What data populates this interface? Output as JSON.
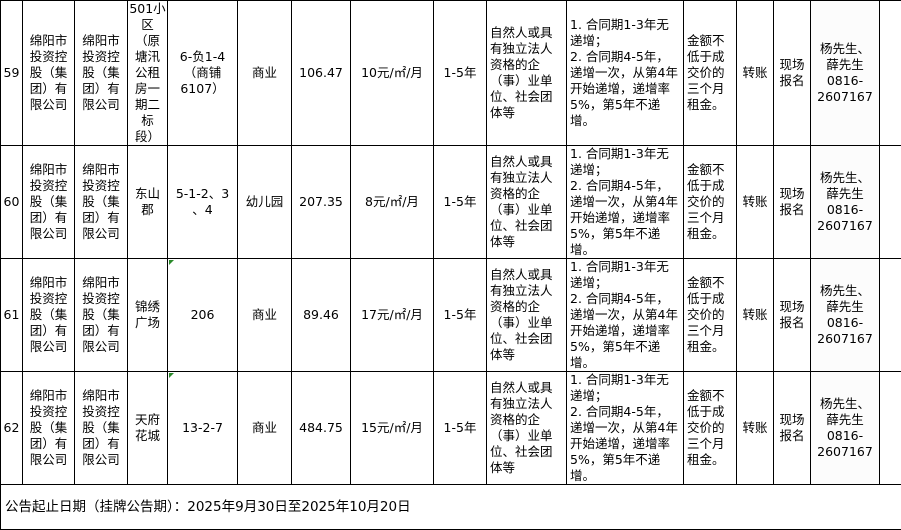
{
  "rows": [
    {
      "no": "59",
      "owner": "绵阳市\n投资控\n股（集\n团）有\n限公司",
      "manager": "绵阳市\n投资控\n股（集\n团）有\n限公司",
      "location": "501小\n区\n（原\n塘汛\n公租\n房一\n期二\n标\n段）",
      "unit": "6-负1-4\n（商铺\n6107）",
      "usage": "商业",
      "area": "106.47",
      "price": "10元/㎡/月",
      "term": "1-5年",
      "qualification": "自然人或具\n有独立法人\n资格的企\n（事）业单\n位、社会团\n体等",
      "increment": "1. 合同期1-3年无\n递增；\n2. 合同期4-5年，\n递增一次，从第4年\n开始递增，递增率\n5%，第5年不递增。",
      "deposit": "金额不\n低于成\n交价的\n三个月\n租金。",
      "payment": "转账",
      "registration": "现场\n报名",
      "contact": "杨先生、\n薛先生\n0816-\n2607167"
    },
    {
      "no": "60",
      "owner": "绵阳市\n投资控\n股（集\n团）有\n限公司",
      "manager": "绵阳市\n投资控\n股（集\n团）有\n限公司",
      "location": "东山\n郡",
      "unit": "5-1-2、3\n、4",
      "usage": "幼儿园",
      "area": "207.35",
      "price": "8元/㎡/月",
      "term": "1-5年",
      "qualification": "自然人或具\n有独立法人\n资格的企\n（事）业单\n位、社会团\n体等",
      "increment": "1. 合同期1-3年无\n递增；\n2. 合同期4-5年，\n递增一次，从第4年\n开始递增，递增率\n5%，第5年不递增。",
      "deposit": "金额不\n低于成\n交价的\n三个月\n租金。",
      "payment": "转账",
      "registration": "现场\n报名",
      "contact": "杨先生、\n薛先生\n0816-\n2607167"
    },
    {
      "no": "61",
      "owner": "绵阳市\n投资控\n股（集\n团）有\n限公司",
      "manager": "绵阳市\n投资控\n股（集\n团）有\n限公司",
      "location": "锦绣\n广场",
      "unit": "206",
      "usage": "商业",
      "area": "89.46",
      "price": "17元/㎡/月",
      "term": "1-5年",
      "qualification": "自然人或具\n有独立法人\n资格的企\n（事）业单\n位、社会团\n体等",
      "increment": "1. 合同期1-3年无\n递增；\n2. 合同期4-5年，\n递增一次，从第4年\n开始递增，递增率\n5%，第5年不递增。",
      "deposit": "金额不\n低于成\n交价的\n三个月\n租金。",
      "payment": "转账",
      "registration": "现场\n报名",
      "contact": "杨先生、\n薛先生\n0816-\n2607167"
    },
    {
      "no": "62",
      "owner": "绵阳市\n投资控\n股（集\n团）有\n限公司",
      "manager": "绵阳市\n投资控\n股（集\n团）有\n限公司",
      "location": "天府\n花城",
      "unit": "13-2-7",
      "usage": "商业",
      "area": "484.75",
      "price": "15元/㎡/月",
      "term": "1-5年",
      "qualification": "自然人或具\n有独立法人\n资格的企\n（事）业单\n位、社会团\n体等",
      "increment": "1. 合同期1-3年无\n递增；\n2. 合同期4-5年，\n递增一次，从第4年\n开始递增，递增率\n5%，第5年不递增。",
      "deposit": "金额不\n低于成\n交价的\n三个月\n租金。",
      "payment": "转账",
      "registration": "现场\n报名",
      "contact": "杨先生、\n薛先生\n0816-\n2607167"
    }
  ],
  "footer": {
    "text": "公告起止日期（挂牌公告期）：2025年9月30日至2025年10月20日"
  }
}
